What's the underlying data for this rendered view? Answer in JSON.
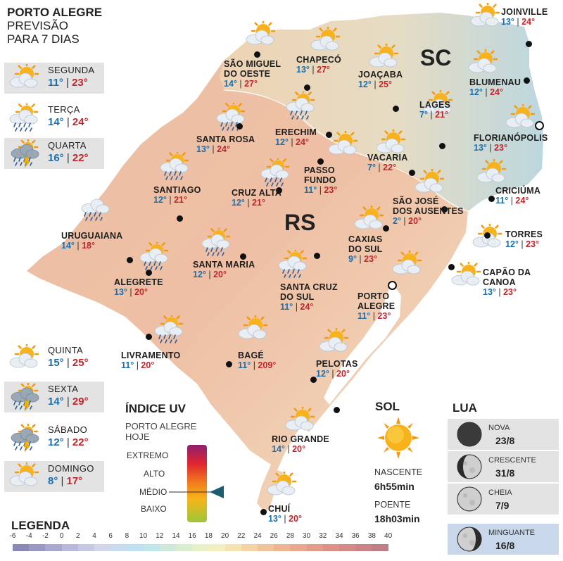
{
  "header": {
    "line1": "PORTO ALEGRE",
    "line2": "PREVISÃO",
    "line3": "PARA 7 DIAS"
  },
  "days": [
    {
      "name": "SEGUNDA",
      "min": "11°",
      "max": "23°",
      "icon": "sun-cloud-icon"
    },
    {
      "name": "TERÇA",
      "min": "14°",
      "max": "24°",
      "icon": "sun-cloud-rain-icon"
    },
    {
      "name": "QUARTA",
      "min": "16°",
      "max": "22°",
      "icon": "cloud-storm-icon"
    },
    {
      "name": "QUINTA",
      "min": "15°",
      "max": "25°",
      "icon": "sun-cloud-icon"
    },
    {
      "name": "SEXTA",
      "min": "14°",
      "max": "29°",
      "icon": "cloud-storm-icon"
    },
    {
      "name": "SÁBADO",
      "min": "12°",
      "max": "22°",
      "icon": "cloud-storm-icon"
    },
    {
      "name": "DOMINGO",
      "min": "8°",
      "max": "17°",
      "icon": "sun-cloud-icon"
    }
  ],
  "states": {
    "sc": "SC",
    "rs": "RS"
  },
  "cities": {
    "joinville": {
      "name": [
        "JOINVILLE"
      ],
      "min": "13°",
      "max": "24°"
    },
    "blumenau": {
      "name": [
        "BLUMENAU"
      ],
      "min": "12°",
      "max": "24°"
    },
    "florianopolis": {
      "name": [
        "FLORIANÓPOLIS"
      ],
      "min": "13°",
      "max": "23°"
    },
    "lages": {
      "name": [
        "LAGES"
      ],
      "min": "7°",
      "max": "21°"
    },
    "joacaba": {
      "name": [
        "JOAÇABA"
      ],
      "min": "12°",
      "max": "25°"
    },
    "chapeco": {
      "name": [
        "CHAPECÓ"
      ],
      "min": "13°",
      "max": "27°"
    },
    "sao_miguel": {
      "name": [
        "SÃO MIGUEL",
        "DO OESTE"
      ],
      "min": "14°",
      "max": "27°"
    },
    "erechim": {
      "name": [
        "ERECHIM"
      ],
      "min": "12°",
      "max": "24°"
    },
    "santa_rosa": {
      "name": [
        "SANTA ROSA"
      ],
      "min": "13°",
      "max": "24°"
    },
    "vacaria": {
      "name": [
        "VACARIA"
      ],
      "min": "7°",
      "max": "22°"
    },
    "passo_fundo": {
      "name": [
        "PASSO",
        "FUNDO"
      ],
      "min": "11°",
      "max": "23°"
    },
    "santiago": {
      "name": [
        "SANTIAGO"
      ],
      "min": "12°",
      "max": "21°"
    },
    "cruz_alta": {
      "name": [
        "CRUZ ALTA"
      ],
      "min": "12°",
      "max": "21°"
    },
    "criciuma": {
      "name": [
        "CRICIÚMA"
      ],
      "min": "11°",
      "max": "24°"
    },
    "sao_jose": {
      "name": [
        "SÃO JOSÉ",
        "DOS AUSENTES"
      ],
      "min": "2°",
      "max": "20°"
    },
    "uruguaiana": {
      "name": [
        "URUGUAIANA"
      ],
      "min": "14°",
      "max": "18°"
    },
    "torres": {
      "name": [
        "TORRES"
      ],
      "min": "12°",
      "max": "23°"
    },
    "caxias": {
      "name": [
        "CAXIAS",
        "DO SUL"
      ],
      "min": "9°",
      "max": "23°"
    },
    "santa_maria": {
      "name": [
        "SANTA MARIA"
      ],
      "min": "12°",
      "max": "20°"
    },
    "alegrete": {
      "name": [
        "ALEGRETE"
      ],
      "min": "13°",
      "max": "20°"
    },
    "capao": {
      "name": [
        "CAPÃO DA",
        "CANOA"
      ],
      "min": "13°",
      "max": "23°"
    },
    "santa_cruz": {
      "name": [
        "SANTA CRUZ",
        "DO SUL"
      ],
      "min": "11°",
      "max": "24°"
    },
    "porto_alegre": {
      "name": [
        "PORTO",
        "ALEGRE"
      ],
      "min": "11°",
      "max": "23°"
    },
    "livramento": {
      "name": [
        "LIVRAMENTO"
      ],
      "min": "11°",
      "max": "20°"
    },
    "bage": {
      "name": [
        "BAGÉ"
      ],
      "min": "11°",
      "max": "209°"
    },
    "pelotas": {
      "name": [
        "PELOTAS"
      ],
      "min": "12°",
      "max": "20°"
    },
    "rio_grande": {
      "name": [
        "RIO GRANDE"
      ],
      "min": "14°",
      "max": "20°"
    },
    "chui": {
      "name": [
        "CHUÍ"
      ],
      "min": "13°",
      "max": "20°"
    }
  },
  "uv": {
    "title": "ÍNDICE UV",
    "subtitle1": "PORTO ALEGRE",
    "subtitle2": "HOJE",
    "levels": [
      "EXTREMO",
      "ALTO",
      "MÉDIO",
      "BAIXO"
    ],
    "current_level": "MÉDIO"
  },
  "sun": {
    "title": "SOL",
    "rise_label": "NASCENTE",
    "rise": "6h55min",
    "set_label": "POENTE",
    "set": "18h03min"
  },
  "moon": {
    "title": "LUA",
    "phases": [
      {
        "name": "NOVA",
        "date": "23/8"
      },
      {
        "name": "CRESCENTE",
        "date": "31/8"
      },
      {
        "name": "CHEIA",
        "date": "7/9"
      },
      {
        "name": "MINGUANTE",
        "date": "16/8"
      }
    ]
  },
  "legend": {
    "title": "LEGENDA",
    "ticks": [
      "-6",
      "-4",
      "-2",
      "0",
      "2",
      "4",
      "6",
      "8",
      "10",
      "12",
      "14",
      "16",
      "18",
      "20",
      "22",
      "24",
      "26",
      "28",
      "30",
      "32",
      "34",
      "36",
      "38",
      "40"
    ],
    "colors": [
      "#8b88b8",
      "#9b98c4",
      "#aaa8cf",
      "#b9b8da",
      "#c7c8e3",
      "#d2d6ea",
      "#c9dcef",
      "#bfe0f2",
      "#bfe6e9",
      "#cde9dc",
      "#dbedd0",
      "#e7f0c9",
      "#f2efc0",
      "#f5e3b3",
      "#f4d3a4",
      "#f1c39a",
      "#eeb593",
      "#e9a78d",
      "#e49c8a",
      "#dd9189",
      "#d58988",
      "#cc8387",
      "#c07e86"
    ]
  }
}
